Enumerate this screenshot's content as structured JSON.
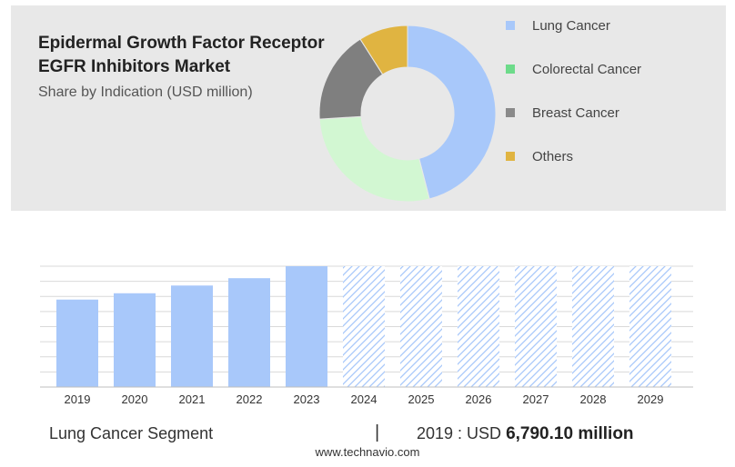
{
  "title": "Epidermal Growth Factor Receptor EGFR Inhibitors Market",
  "subtitle": "Share by Indication (USD million)",
  "legend": [
    {
      "label": "Lung Cancer",
      "color": "#a8c8fa"
    },
    {
      "label": "Colorectal Cancer",
      "color": "#6ddb8a"
    },
    {
      "label": "Breast Cancer",
      "color": "#8a8a8a"
    },
    {
      "label": "Others",
      "color": "#e0b441"
    }
  ],
  "footer": {
    "segment": "Lung Cancer Segment",
    "divider": "|",
    "prefix": "2019 : USD",
    "value": "6,790.10 million"
  },
  "source": "www.technavio.com",
  "chart_data": [
    {
      "type": "pie",
      "categories": [
        "Lung Cancer",
        "Colorectal Cancer",
        "Breast Cancer",
        "Others"
      ],
      "values": [
        46,
        28,
        17,
        9
      ],
      "colors": [
        "#a8c8fa",
        "#d2f7d2",
        "#7f7f7f",
        "#e0b441"
      ]
    },
    {
      "type": "bar",
      "categories": [
        "2019",
        "2020",
        "2021",
        "2022",
        "2023",
        "2024",
        "2025",
        "2026",
        "2027",
        "2028",
        "2029"
      ],
      "values": [
        6790.1,
        7280,
        7880,
        8450,
        9380,
        9380,
        9380,
        9380,
        9380,
        9380,
        9380
      ],
      "forecast_from": "2024",
      "ylim": [
        0,
        9380
      ],
      "grid": true,
      "color": "#a8c8fa"
    }
  ]
}
